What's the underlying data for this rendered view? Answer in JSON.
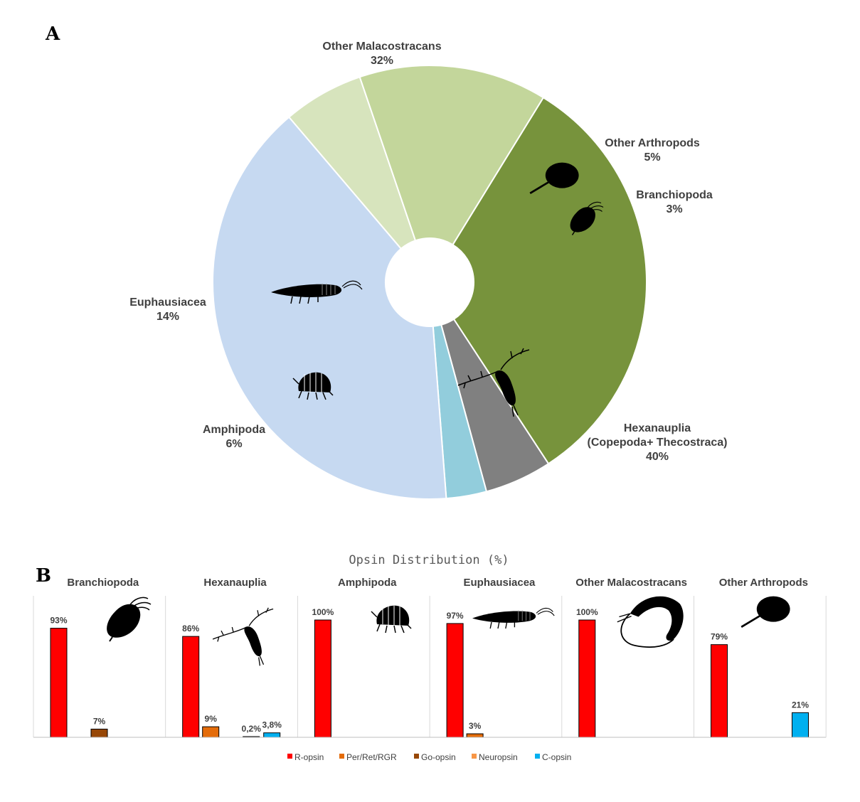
{
  "panel_a_label": "A",
  "panel_b_label": "B",
  "chart_data": [
    {
      "type": "pie",
      "donut": true,
      "categories": [
        "Other Malacostracans",
        "Other Arthropods",
        "Branchiopoda",
        "Hexanauplia (Copepoda+ Thecostraca)",
        "Amphipoda",
        "Euphausiacea"
      ],
      "label_lines": [
        [
          "Other Malacostracans"
        ],
        [
          "Other Arthropods"
        ],
        [
          "Branchiopoda"
        ],
        [
          "Hexanauplia",
          "(Copepoda+ Thecostraca)"
        ],
        [
          "Amphipoda"
        ],
        [
          "Euphausiacea"
        ]
      ],
      "values": [
        32,
        5,
        3,
        40,
        6,
        14
      ],
      "value_labels": [
        "32%",
        "5%",
        "3%",
        "40%",
        "6%",
        "14%"
      ],
      "colors": [
        "#77933c",
        "#808080",
        "#92cddc",
        "#c6d9f1",
        "#d7e4bd",
        "#c3d69b"
      ],
      "icons": [
        "shrimp-icon",
        "horseshoe-crab-icon",
        "daphnia-icon",
        "copepod-icon",
        "amphipod-icon",
        "krill-icon"
      ]
    },
    {
      "type": "bar",
      "title": "Opsin Distribution  (%)",
      "series_names": [
        "R-opsin",
        "Per/Ret/RGR",
        "Go-opsin",
        "Neuropsin",
        "C-opsin"
      ],
      "series_colors": [
        "#ff0000",
        "#e46c0a",
        "#974706",
        "#f79646",
        "#00b0f0"
      ],
      "legend": "bottom",
      "ylim": [
        0,
        100
      ],
      "groups": [
        {
          "name": "Branchiopoda",
          "icon": "daphnia-icon",
          "values": [
            93,
            0,
            7,
            0,
            0
          ],
          "labels": [
            "93%",
            "",
            "7%",
            "",
            ""
          ]
        },
        {
          "name": "Hexanauplia",
          "icon": "copepod-icon",
          "values": [
            86,
            9,
            0,
            0.2,
            3.8
          ],
          "labels": [
            "86%",
            "9%",
            "",
            "0,2%",
            "3,8%"
          ]
        },
        {
          "name": "Amphipoda",
          "icon": "amphipod-icon",
          "values": [
            100,
            0,
            0,
            0,
            0
          ],
          "labels": [
            "100%",
            "",
            "",
            "",
            ""
          ]
        },
        {
          "name": "Euphausiacea",
          "icon": "krill-icon",
          "values": [
            97,
            3,
            0,
            0,
            0
          ],
          "labels": [
            "97%",
            "3%",
            "",
            "",
            ""
          ]
        },
        {
          "name": "Other Malacostracans",
          "icon": "shrimp-icon",
          "values": [
            100,
            0,
            0,
            0,
            0
          ],
          "labels": [
            "100%",
            "",
            "",
            "",
            ""
          ]
        },
        {
          "name": "Other Arthropods",
          "icon": "horseshoe-crab-icon",
          "values": [
            79,
            0,
            0,
            0,
            21
          ],
          "labels": [
            "79%",
            "",
            "",
            "",
            "21%"
          ]
        }
      ]
    }
  ]
}
